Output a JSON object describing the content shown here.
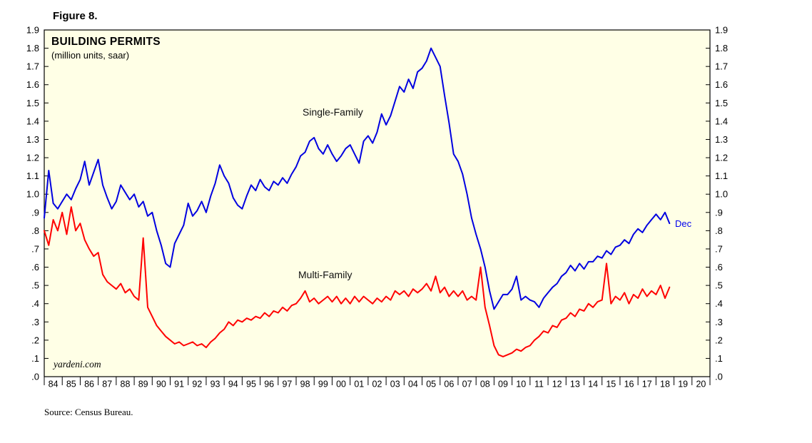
{
  "figure_label": "Figure 8.",
  "watermark": "yardeni.com",
  "source": "Source: Census Bureau.",
  "chart_data": {
    "type": "line",
    "title": "BUILDING PERMITS",
    "subtitle": "(million units, saar)",
    "last_point_label": "Dec",
    "plot_bg": "#FFFFE6",
    "ylim": [
      0,
      1.9
    ],
    "xlim_years": [
      1984,
      2021
    ],
    "grid": false,
    "legend_position": "inline-labels",
    "y_tick_labels": [
      "1.9",
      "1.8",
      "1.7",
      "1.6",
      "1.5",
      "1.4",
      "1.3",
      "1.2",
      "1.1",
      "1.0",
      ".9",
      ".8",
      ".7",
      ".6",
      ".5",
      ".4",
      ".3",
      ".2",
      ".1",
      ".0"
    ],
    "x_tick_labels": [
      "84",
      "85",
      "86",
      "87",
      "88",
      "89",
      "90",
      "91",
      "92",
      "93",
      "94",
      "95",
      "96",
      "97",
      "98",
      "99",
      "00",
      "01",
      "02",
      "03",
      "04",
      "05",
      "06",
      "07",
      "08",
      "09",
      "10",
      "11",
      "12",
      "13",
      "14",
      "15",
      "16",
      "17",
      "18",
      "19",
      "20"
    ],
    "series": [
      {
        "name": "Single-Family",
        "data_name": "single-family-line",
        "color": "#0000E0",
        "x_start": 1984.0,
        "x_step": 0.25,
        "values": [
          0.87,
          1.13,
          0.95,
          0.92,
          0.96,
          1.0,
          0.97,
          1.03,
          1.08,
          1.18,
          1.05,
          1.12,
          1.19,
          1.05,
          0.98,
          0.92,
          0.96,
          1.05,
          1.01,
          0.97,
          1.0,
          0.93,
          0.96,
          0.88,
          0.9,
          0.8,
          0.72,
          0.62,
          0.6,
          0.73,
          0.78,
          0.83,
          0.95,
          0.88,
          0.91,
          0.96,
          0.9,
          0.99,
          1.06,
          1.16,
          1.1,
          1.06,
          0.98,
          0.94,
          0.92,
          0.99,
          1.05,
          1.02,
          1.08,
          1.04,
          1.02,
          1.07,
          1.05,
          1.09,
          1.06,
          1.11,
          1.15,
          1.21,
          1.23,
          1.29,
          1.31,
          1.25,
          1.22,
          1.27,
          1.22,
          1.18,
          1.21,
          1.25,
          1.27,
          1.22,
          1.17,
          1.29,
          1.32,
          1.28,
          1.34,
          1.44,
          1.38,
          1.43,
          1.51,
          1.59,
          1.56,
          1.63,
          1.58,
          1.67,
          1.69,
          1.73,
          1.8,
          1.75,
          1.7,
          1.54,
          1.39,
          1.22,
          1.18,
          1.11,
          1.0,
          0.87,
          0.78,
          0.7,
          0.6,
          0.47,
          0.37,
          0.41,
          0.45,
          0.45,
          0.48,
          0.55,
          0.42,
          0.44,
          0.42,
          0.41,
          0.38,
          0.43,
          0.46,
          0.49,
          0.51,
          0.55,
          0.57,
          0.61,
          0.58,
          0.62,
          0.59,
          0.63,
          0.63,
          0.66,
          0.65,
          0.69,
          0.67,
          0.71,
          0.72,
          0.75,
          0.73,
          0.78,
          0.81,
          0.79,
          0.83,
          0.86,
          0.89,
          0.86,
          0.9,
          0.84
        ]
      },
      {
        "name": "Multi-Family",
        "data_name": "multi-family-line",
        "color": "#FF0000",
        "x_start": 1984.0,
        "x_step": 0.25,
        "values": [
          0.8,
          0.72,
          0.86,
          0.8,
          0.9,
          0.78,
          0.93,
          0.8,
          0.84,
          0.75,
          0.7,
          0.66,
          0.68,
          0.56,
          0.52,
          0.5,
          0.48,
          0.51,
          0.46,
          0.48,
          0.44,
          0.42,
          0.76,
          0.38,
          0.33,
          0.28,
          0.25,
          0.22,
          0.2,
          0.18,
          0.19,
          0.17,
          0.18,
          0.19,
          0.17,
          0.18,
          0.16,
          0.19,
          0.21,
          0.24,
          0.26,
          0.3,
          0.28,
          0.31,
          0.3,
          0.32,
          0.31,
          0.33,
          0.32,
          0.35,
          0.33,
          0.36,
          0.35,
          0.38,
          0.36,
          0.39,
          0.4,
          0.43,
          0.47,
          0.41,
          0.43,
          0.4,
          0.42,
          0.44,
          0.41,
          0.44,
          0.4,
          0.43,
          0.4,
          0.44,
          0.41,
          0.44,
          0.42,
          0.4,
          0.43,
          0.41,
          0.44,
          0.42,
          0.47,
          0.45,
          0.47,
          0.44,
          0.48,
          0.46,
          0.48,
          0.51,
          0.47,
          0.55,
          0.46,
          0.49,
          0.44,
          0.47,
          0.44,
          0.47,
          0.42,
          0.44,
          0.42,
          0.6,
          0.38,
          0.28,
          0.17,
          0.12,
          0.11,
          0.12,
          0.13,
          0.15,
          0.14,
          0.16,
          0.17,
          0.2,
          0.22,
          0.25,
          0.24,
          0.28,
          0.27,
          0.31,
          0.32,
          0.35,
          0.33,
          0.37,
          0.36,
          0.4,
          0.38,
          0.41,
          0.42,
          0.62,
          0.4,
          0.44,
          0.42,
          0.46,
          0.4,
          0.45,
          0.43,
          0.48,
          0.44,
          0.47,
          0.45,
          0.5,
          0.43,
          0.49
        ]
      }
    ]
  }
}
